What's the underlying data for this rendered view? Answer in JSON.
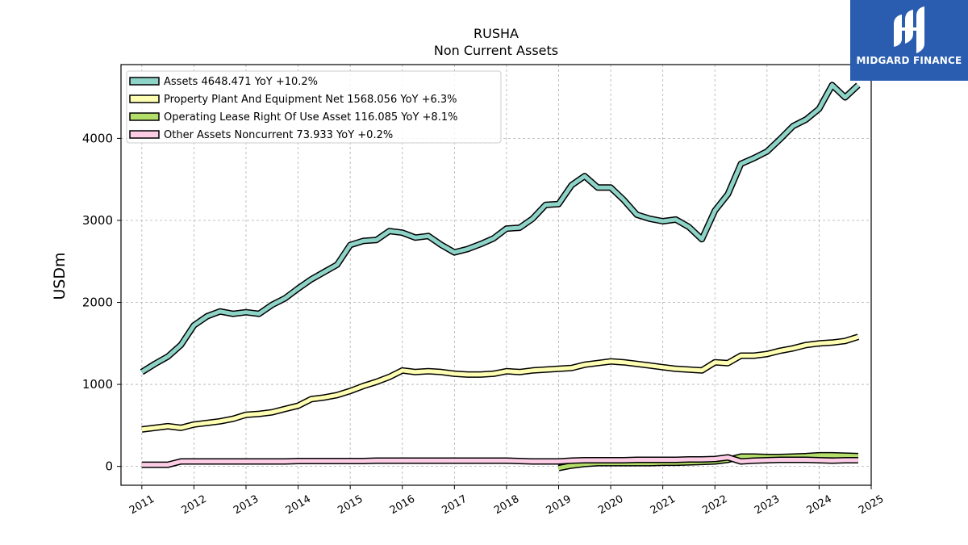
{
  "chart_data": {
    "type": "line",
    "title": "RUSHA",
    "subtitle": "Non Current  Assets",
    "ylabel": "USDm",
    "xlabel": "",
    "xlim": [
      2010.6,
      2025.0
    ],
    "ylim": [
      -230,
      4900
    ],
    "grid": true,
    "legend_position": "top-left",
    "x_ticks": [
      2011,
      2012,
      2013,
      2014,
      2015,
      2016,
      2017,
      2018,
      2019,
      2020,
      2021,
      2022,
      2023,
      2024,
      2025
    ],
    "y_ticks": [
      0,
      1000,
      2000,
      3000,
      4000
    ],
    "series": [
      {
        "name": "Assets  4648.471 YoY +10.2%",
        "color": "#8dd3c7",
        "points": [
          [
            2011.0,
            1150
          ],
          [
            2011.25,
            1250
          ],
          [
            2011.5,
            1340
          ],
          [
            2011.75,
            1480
          ],
          [
            2012.0,
            1720
          ],
          [
            2012.25,
            1830
          ],
          [
            2012.5,
            1890
          ],
          [
            2012.75,
            1860
          ],
          [
            2013.0,
            1880
          ],
          [
            2013.25,
            1860
          ],
          [
            2013.5,
            1970
          ],
          [
            2013.75,
            2050
          ],
          [
            2014.0,
            2170
          ],
          [
            2014.25,
            2280
          ],
          [
            2014.5,
            2370
          ],
          [
            2014.75,
            2460
          ],
          [
            2015.0,
            2700
          ],
          [
            2015.25,
            2750
          ],
          [
            2015.5,
            2760
          ],
          [
            2015.75,
            2870
          ],
          [
            2016.0,
            2850
          ],
          [
            2016.25,
            2790
          ],
          [
            2016.5,
            2810
          ],
          [
            2016.75,
            2700
          ],
          [
            2017.0,
            2610
          ],
          [
            2017.25,
            2650
          ],
          [
            2017.5,
            2710
          ],
          [
            2017.75,
            2780
          ],
          [
            2018.0,
            2900
          ],
          [
            2018.25,
            2910
          ],
          [
            2018.5,
            3020
          ],
          [
            2018.75,
            3190
          ],
          [
            2019.0,
            3200
          ],
          [
            2019.25,
            3430
          ],
          [
            2019.5,
            3540
          ],
          [
            2019.75,
            3400
          ],
          [
            2020.0,
            3400
          ],
          [
            2020.25,
            3250
          ],
          [
            2020.5,
            3070
          ],
          [
            2020.75,
            3020
          ],
          [
            2021.0,
            2990
          ],
          [
            2021.25,
            3010
          ],
          [
            2021.5,
            2920
          ],
          [
            2021.75,
            2770
          ],
          [
            2022.0,
            3120
          ],
          [
            2022.25,
            3320
          ],
          [
            2022.5,
            3690
          ],
          [
            2022.75,
            3760
          ],
          [
            2023.0,
            3840
          ],
          [
            2023.25,
            3990
          ],
          [
            2023.5,
            4150
          ],
          [
            2023.75,
            4230
          ],
          [
            2024.0,
            4360
          ],
          [
            2024.25,
            4650
          ],
          [
            2024.5,
            4500
          ],
          [
            2024.75,
            4650
          ]
        ]
      },
      {
        "name": "Property Plant And Equipment Net  1568.056 YoY +6.3%",
        "color": "#ffffb3",
        "points": [
          [
            2011.0,
            450
          ],
          [
            2011.25,
            470
          ],
          [
            2011.5,
            490
          ],
          [
            2011.75,
            470
          ],
          [
            2012.0,
            510
          ],
          [
            2012.25,
            530
          ],
          [
            2012.5,
            550
          ],
          [
            2012.75,
            580
          ],
          [
            2013.0,
            630
          ],
          [
            2013.25,
            640
          ],
          [
            2013.5,
            660
          ],
          [
            2013.75,
            700
          ],
          [
            2014.0,
            740
          ],
          [
            2014.25,
            820
          ],
          [
            2014.5,
            840
          ],
          [
            2014.75,
            870
          ],
          [
            2015.0,
            920
          ],
          [
            2015.25,
            980
          ],
          [
            2015.5,
            1030
          ],
          [
            2015.75,
            1090
          ],
          [
            2016.0,
            1170
          ],
          [
            2016.25,
            1150
          ],
          [
            2016.5,
            1160
          ],
          [
            2016.75,
            1150
          ],
          [
            2017.0,
            1130
          ],
          [
            2017.25,
            1120
          ],
          [
            2017.5,
            1120
          ],
          [
            2017.75,
            1130
          ],
          [
            2018.0,
            1160
          ],
          [
            2018.25,
            1150
          ],
          [
            2018.5,
            1170
          ],
          [
            2018.75,
            1180
          ],
          [
            2019.0,
            1190
          ],
          [
            2019.25,
            1200
          ],
          [
            2019.5,
            1240
          ],
          [
            2019.75,
            1260
          ],
          [
            2020.0,
            1280
          ],
          [
            2020.25,
            1270
          ],
          [
            2020.5,
            1250
          ],
          [
            2020.75,
            1230
          ],
          [
            2021.0,
            1210
          ],
          [
            2021.25,
            1190
          ],
          [
            2021.5,
            1180
          ],
          [
            2021.75,
            1170
          ],
          [
            2022.0,
            1270
          ],
          [
            2022.25,
            1260
          ],
          [
            2022.5,
            1350
          ],
          [
            2022.75,
            1350
          ],
          [
            2023.0,
            1370
          ],
          [
            2023.25,
            1410
          ],
          [
            2023.5,
            1440
          ],
          [
            2023.75,
            1480
          ],
          [
            2024.0,
            1500
          ],
          [
            2024.25,
            1510
          ],
          [
            2024.5,
            1530
          ],
          [
            2024.75,
            1580
          ]
        ]
      },
      {
        "name": "Operating Lease Right Of Use Asset  116.085 YoY +8.1%",
        "color": "#b3de69",
        "points": [
          [
            2019.0,
            -20
          ],
          [
            2019.25,
            10
          ],
          [
            2019.5,
            30
          ],
          [
            2019.75,
            40
          ],
          [
            2020.0,
            40
          ],
          [
            2020.25,
            40
          ],
          [
            2020.5,
            40
          ],
          [
            2020.75,
            40
          ],
          [
            2021.0,
            45
          ],
          [
            2021.25,
            45
          ],
          [
            2021.5,
            50
          ],
          [
            2021.75,
            55
          ],
          [
            2022.0,
            60
          ],
          [
            2022.25,
            80
          ],
          [
            2022.5,
            120
          ],
          [
            2022.75,
            120
          ],
          [
            2023.0,
            115
          ],
          [
            2023.25,
            115
          ],
          [
            2023.5,
            120
          ],
          [
            2023.75,
            125
          ],
          [
            2024.0,
            135
          ],
          [
            2024.25,
            135
          ],
          [
            2024.5,
            130
          ],
          [
            2024.75,
            125
          ]
        ]
      },
      {
        "name": "Other Assets Noncurrent  73.933 YoY +0.2%",
        "color": "#fccde5",
        "points": [
          [
            2011.0,
            20
          ],
          [
            2011.25,
            20
          ],
          [
            2011.5,
            20
          ],
          [
            2011.75,
            60
          ],
          [
            2012.0,
            60
          ],
          [
            2012.25,
            60
          ],
          [
            2012.5,
            60
          ],
          [
            2012.75,
            60
          ],
          [
            2013.0,
            60
          ],
          [
            2013.25,
            60
          ],
          [
            2013.5,
            60
          ],
          [
            2013.75,
            60
          ],
          [
            2014.0,
            65
          ],
          [
            2014.25,
            65
          ],
          [
            2014.5,
            65
          ],
          [
            2014.75,
            65
          ],
          [
            2015.0,
            65
          ],
          [
            2015.25,
            65
          ],
          [
            2015.5,
            70
          ],
          [
            2015.75,
            70
          ],
          [
            2016.0,
            70
          ],
          [
            2016.25,
            70
          ],
          [
            2016.5,
            70
          ],
          [
            2016.75,
            70
          ],
          [
            2017.0,
            70
          ],
          [
            2017.25,
            70
          ],
          [
            2017.5,
            70
          ],
          [
            2017.75,
            70
          ],
          [
            2018.0,
            70
          ],
          [
            2018.25,
            65
          ],
          [
            2018.5,
            60
          ],
          [
            2018.75,
            60
          ],
          [
            2019.0,
            60
          ],
          [
            2019.25,
            70
          ],
          [
            2019.5,
            75
          ],
          [
            2019.75,
            75
          ],
          [
            2020.0,
            75
          ],
          [
            2020.25,
            75
          ],
          [
            2020.5,
            80
          ],
          [
            2020.75,
            80
          ],
          [
            2021.0,
            80
          ],
          [
            2021.25,
            80
          ],
          [
            2021.5,
            85
          ],
          [
            2021.75,
            85
          ],
          [
            2022.0,
            90
          ],
          [
            2022.25,
            110
          ],
          [
            2022.5,
            60
          ],
          [
            2022.75,
            70
          ],
          [
            2023.0,
            75
          ],
          [
            2023.25,
            80
          ],
          [
            2023.5,
            80
          ],
          [
            2023.75,
            80
          ],
          [
            2024.0,
            75
          ],
          [
            2024.25,
            70
          ],
          [
            2024.5,
            75
          ],
          [
            2024.75,
            75
          ]
        ]
      }
    ]
  },
  "brand": {
    "name": "MIDGARD FINANCE",
    "bg_color": "#2a5db0"
  }
}
